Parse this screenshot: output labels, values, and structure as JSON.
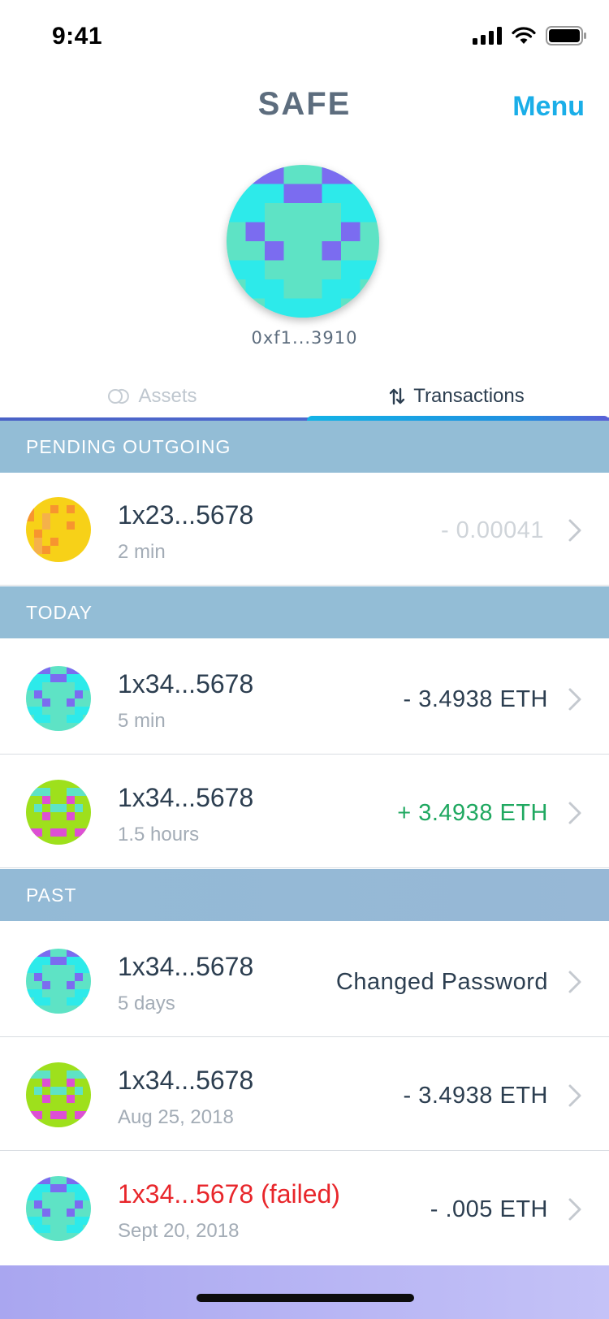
{
  "status": {
    "time": "9:41"
  },
  "header": {
    "title": "SAFE",
    "menu_label": "Menu"
  },
  "wallet": {
    "address": "0xf1...3910"
  },
  "tabs": [
    {
      "label": "Assets",
      "icon": "coins-icon",
      "active": false
    },
    {
      "label": "Transactions",
      "icon": "swap-arrows-icon",
      "active": true
    }
  ],
  "sections": {
    "pending": "PENDING OUTGOING",
    "today": "TODAY",
    "past": "PAST"
  },
  "transactions": {
    "pending": [
      {
        "address": "1x23...5678",
        "time": "2 min",
        "amount": "- 0.00041",
        "status": "pending"
      }
    ],
    "today": [
      {
        "address": "1x34...5678",
        "time": "5 min",
        "amount": "- 3.4938 ETH",
        "status": "outgoing"
      },
      {
        "address": "1x34...5678",
        "time": "1.5 hours",
        "amount": "+ 3.4938 ETH",
        "status": "incoming"
      }
    ],
    "past": [
      {
        "address": "1x34...5678",
        "time": "5 days",
        "amount": "Changed Password",
        "status": "event"
      },
      {
        "address": "1x34...5678",
        "time": "Aug 25, 2018",
        "amount": "- 3.4938 ETH",
        "status": "outgoing"
      },
      {
        "address": "1x34...5678 (failed)",
        "time": "Sept 20, 2018",
        "amount": "- .005 ETH",
        "status": "failed"
      }
    ]
  },
  "colors": {
    "accent": "#1aaee8",
    "section_bg": "#93bdd6",
    "positive": "#1fa860",
    "failed": "#e8262b",
    "pending_amount": "#cfd4d9"
  }
}
